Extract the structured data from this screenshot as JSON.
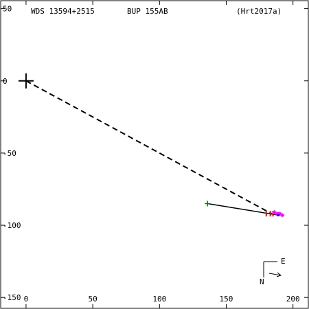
{
  "header": {
    "wds": "WDS 13594+2515",
    "pair": "BUP 155AB",
    "reference": "(Hrt2017a)"
  },
  "compass": {
    "east_label": "E",
    "north_label": "N"
  },
  "colors": {
    "background": "#ffffff",
    "axis": "#000000",
    "orbit_line": "#000000",
    "early_marker": "#008000",
    "red_marker": "#ff0000",
    "magenta_marker": "#ff00ff",
    "blue_marker": "#0000ff"
  },
  "chart_data": {
    "type": "scatter",
    "title": "",
    "xlabel": "",
    "ylabel": "",
    "xlim": [
      -19.5,
      212
    ],
    "ylim": [
      -158,
      56
    ],
    "x_ticks": [
      0,
      50,
      100,
      150,
      200
    ],
    "y_ticks": [
      50,
      0,
      -50,
      -100,
      -150
    ],
    "grid": false,
    "origin_marker": [
      0,
      0
    ],
    "reference_line": {
      "from": [
        0,
        0
      ],
      "to": [
        184,
        -92
      ],
      "style": "dashed"
    },
    "motion_segment": {
      "from": [
        136,
        -85
      ],
      "to": [
        189,
        -93
      ]
    },
    "series": [
      {
        "marker": "plus",
        "color": "#008000",
        "points": [
          [
            136,
            -85
          ]
        ]
      },
      {
        "marker": "tick",
        "color": "#ff0000",
        "points": [
          [
            180,
            -92
          ],
          [
            183,
            -92
          ],
          [
            185,
            -92
          ]
        ]
      },
      {
        "marker": "star",
        "color": "#ff00ff",
        "points": [
          [
            186,
            -91
          ],
          [
            188,
            -92
          ],
          [
            190,
            -92
          ],
          [
            192,
            -93
          ]
        ]
      },
      {
        "marker": "dot",
        "color": "#0000ff",
        "points": [
          [
            189,
            -93
          ]
        ]
      }
    ]
  }
}
